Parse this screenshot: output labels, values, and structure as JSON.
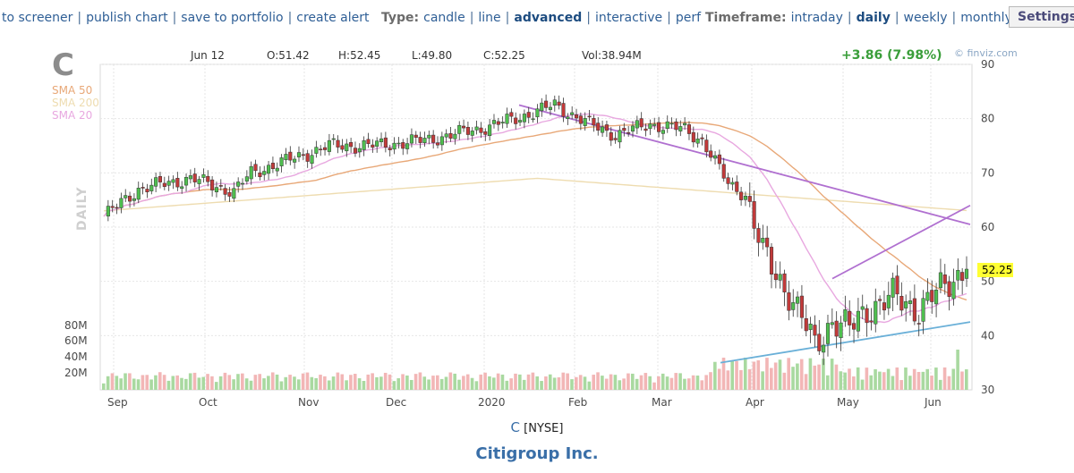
{
  "toolbar": {
    "left_links": [
      "to screener",
      "publish chart",
      "save to portfolio",
      "create alert"
    ],
    "type_label": "Type:",
    "type_options": [
      "candle",
      "line",
      "advanced",
      "interactive",
      "perf"
    ],
    "type_active": "advanced",
    "timeframe_label": "Timeframe:",
    "timeframe_options": [
      "intraday",
      "daily",
      "weekly",
      "monthly"
    ],
    "timeframe_active": "daily",
    "settings_label": "Settings"
  },
  "header": {
    "ticker": "C",
    "date": "Jun 12",
    "open": "O:51.42",
    "high": "H:52.45",
    "low": "L:49.80",
    "close": "C:52.25",
    "volume": "Vol:38.94M",
    "change": "+3.86 (7.98%)",
    "brand": "© finviz.com"
  },
  "legend": {
    "sma50": "SMA 50",
    "sma200": "SMA 200",
    "sma20": "SMA 20",
    "period_label": "DAILY"
  },
  "colors": {
    "sma50": "#e8a878",
    "sma200": "#eedcb0",
    "sma20": "#e8a8e0",
    "up": "#4fbf4f",
    "down": "#c23a3a",
    "vol_up": "#a9d9a0",
    "vol_down": "#f2b6b6",
    "trend_purple": "#b070d0",
    "trend_blue": "#6ab0d8",
    "last_bg": "#ffff33"
  },
  "chart_data": {
    "type": "candlestick",
    "title": "C",
    "x_tick_labels": [
      "Sep",
      "Oct",
      "Nov",
      "Dec",
      "2020",
      "Feb",
      "Mar",
      "Apr",
      "May",
      "Jun"
    ],
    "y_ticks": [
      30,
      40,
      50,
      60,
      70,
      80,
      90
    ],
    "ylim": [
      30,
      90
    ],
    "volume_ticks": [
      "80M",
      "60M",
      "40M",
      "20M"
    ],
    "last_price": "52.25",
    "price_path_monthly": [
      {
        "month": "Sep",
        "close": 65
      },
      {
        "month": "Oct",
        "close": 68
      },
      {
        "month": "Nov",
        "close": 74
      },
      {
        "month": "Dec",
        "close": 77
      },
      {
        "month": "2020",
        "close": 80
      },
      {
        "month": "Feb",
        "close": 79
      },
      {
        "month": "Mar",
        "close": 44
      },
      {
        "month": "Apr",
        "close": 47
      },
      {
        "month": "May",
        "close": 45
      },
      {
        "month": "Jun",
        "close": 52.25
      }
    ],
    "series": [
      {
        "name": "SMA 50"
      },
      {
        "name": "SMA 200"
      },
      {
        "name": "SMA 20"
      }
    ],
    "trendlines": [
      {
        "color": "purple",
        "from": {
          "date": "Jan",
          "value": 82.5
        },
        "to": {
          "date": "Jun",
          "value": 60.5
        }
      },
      {
        "color": "purple",
        "from": {
          "date": "May",
          "value": 50.5
        },
        "to": {
          "date": "Jun",
          "value": 64
        }
      },
      {
        "color": "blue",
        "from": {
          "date": "Mar",
          "value": 35
        },
        "to": {
          "date": "Jun",
          "value": 42.5
        }
      }
    ]
  },
  "footer": {
    "symbol": "C",
    "exchange": "[NYSE]",
    "company": "Citigroup Inc."
  }
}
